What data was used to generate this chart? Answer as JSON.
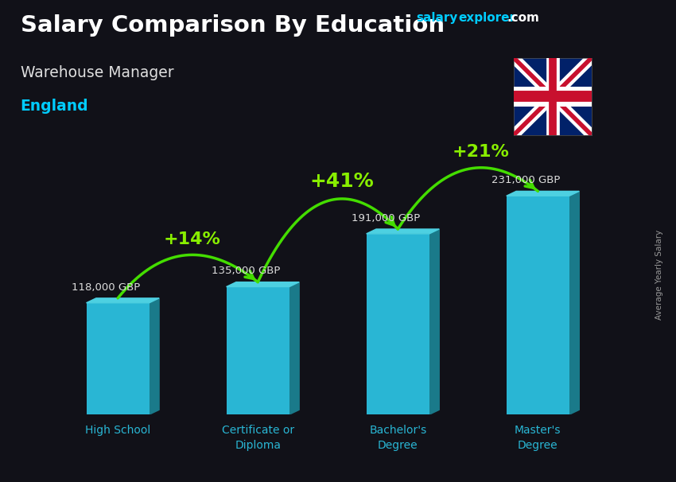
{
  "title_line1": "Salary Comparison By Education",
  "subtitle": "Warehouse Manager",
  "location": "England",
  "brand_salary": "salary",
  "brand_explorer": "explorer",
  "brand_com": ".com",
  "ylabel": "Average Yearly Salary",
  "categories": [
    "High School",
    "Certificate or\nDiploma",
    "Bachelor's\nDegree",
    "Master's\nDegree"
  ],
  "values": [
    118000,
    135000,
    191000,
    231000
  ],
  "value_labels": [
    "118,000 GBP",
    "135,000 GBP",
    "191,000 GBP",
    "231,000 GBP"
  ],
  "pct_changes": [
    "+14%",
    "+41%",
    "+21%"
  ],
  "bar_color": "#29b6d4",
  "bar_color_light": "#4dd0e1",
  "bar_shadow": "#1a7a8a",
  "background_color": "#111118",
  "title_color": "#ffffff",
  "subtitle_color": "#e0e0e0",
  "location_color": "#00ccff",
  "value_label_color": "#dddddd",
  "pct_color": "#88ee00",
  "arrow_color": "#44dd00",
  "xlabel_color": "#29b6d4",
  "ylabel_color": "#999999",
  "brand_color": "#00ccff",
  "ylim": [
    0,
    275000
  ],
  "figsize": [
    8.5,
    6.06
  ],
  "dpi": 100
}
